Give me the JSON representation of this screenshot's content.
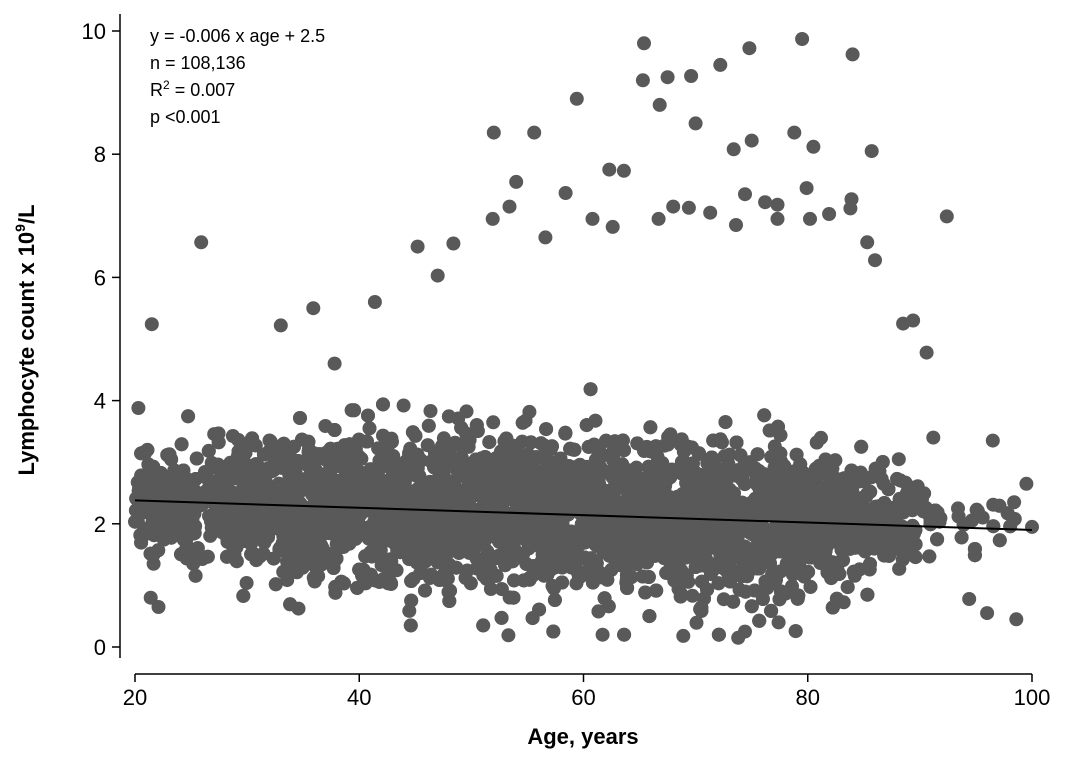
{
  "chart_data": {
    "type": "scatter",
    "xlabel": "Age, years",
    "ylabel_main": "Lymphocyte count x 10",
    "ylabel_sup": "9",
    "ylabel_tail": "/L",
    "xlim": [
      20,
      100
    ],
    "ylim": [
      0,
      10
    ],
    "xticks": [
      20,
      40,
      60,
      80,
      100
    ],
    "yticks": [
      0,
      2,
      4,
      6,
      8,
      10
    ],
    "grid": false,
    "point_color": "#595959",
    "line_color": "#000000",
    "regression": {
      "slope": -0.006,
      "intercept": 2.5,
      "x_range": [
        20,
        100
      ]
    },
    "annotations": {
      "equation": "y = -0.006 x age + 2.5",
      "n": "n = 108,136",
      "r2_prefix": "R",
      "r2_sup": "2",
      "r2_suffix": " = 0.007",
      "p": "p <0.001"
    },
    "outliers": [
      [
        21.5,
        5.24
      ],
      [
        25.9,
        6.57
      ],
      [
        20.3,
        3.88
      ],
      [
        21.4,
        0.8
      ],
      [
        22.1,
        0.65
      ],
      [
        52,
        8.35
      ],
      [
        55.6,
        8.35
      ],
      [
        59.4,
        8.9
      ],
      [
        65.4,
        9.8
      ],
      [
        65.3,
        9.2
      ],
      [
        66.8,
        8.8
      ],
      [
        67.5,
        9.25
      ],
      [
        69.6,
        9.27
      ],
      [
        70,
        8.5
      ],
      [
        72.2,
        9.45
      ],
      [
        74.8,
        9.72
      ],
      [
        79.5,
        9.87
      ],
      [
        84,
        9.62
      ],
      [
        75,
        8.22
      ],
      [
        78.8,
        8.35
      ],
      [
        73.4,
        8.08
      ],
      [
        80.5,
        8.12
      ],
      [
        85.7,
        8.05
      ],
      [
        62.3,
        7.75
      ],
      [
        63.6,
        7.73
      ],
      [
        54,
        7.55
      ],
      [
        58.4,
        7.37
      ],
      [
        53.4,
        7.15
      ],
      [
        51.9,
        6.95
      ],
      [
        47,
        6.03
      ],
      [
        48.4,
        6.55
      ],
      [
        79.9,
        7.45
      ],
      [
        83.9,
        7.27
      ],
      [
        83.8,
        7.12
      ],
      [
        81.9,
        7.03
      ],
      [
        85.3,
        6.57
      ],
      [
        86,
        6.28
      ],
      [
        74.4,
        7.35
      ],
      [
        76.2,
        7.22
      ],
      [
        77.3,
        7.18
      ],
      [
        92.4,
        6.99
      ],
      [
        90.6,
        4.78
      ],
      [
        96.5,
        3.35
      ],
      [
        99.5,
        2.65
      ],
      [
        98.4,
        2.35
      ],
      [
        100,
        1.95
      ],
      [
        98.6,
        0.45
      ],
      [
        96,
        0.55
      ],
      [
        94.4,
        0.78
      ],
      [
        53.3,
        0.19
      ],
      [
        61.7,
        0.2
      ],
      [
        68.9,
        0.18
      ],
      [
        73.8,
        0.15
      ],
      [
        74.4,
        0.25
      ],
      [
        77.4,
        0.4
      ],
      [
        35.9,
        5.5
      ],
      [
        33,
        5.22
      ],
      [
        37.8,
        4.6
      ],
      [
        41.4,
        5.6
      ],
      [
        45.2,
        6.5
      ],
      [
        56.6,
        6.65
      ],
      [
        60.8,
        6.95
      ],
      [
        68,
        7.15
      ],
      [
        69.4,
        7.13
      ],
      [
        71.3,
        7.05
      ],
      [
        66.7,
        6.95
      ],
      [
        62.6,
        6.82
      ],
      [
        80.2,
        6.95
      ],
      [
        77.3,
        6.95
      ],
      [
        73.6,
        6.85
      ],
      [
        88.5,
        5.25
      ],
      [
        89.4,
        5.3
      ],
      [
        91.2,
        3.4
      ],
      [
        93.4,
        2.25
      ],
      [
        95.6,
        2.1
      ]
    ]
  }
}
